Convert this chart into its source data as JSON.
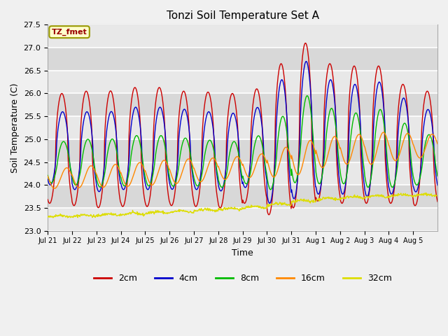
{
  "title": "Tonzi Soil Temperature Set A",
  "xlabel": "Time",
  "ylabel": "Soil Temperature (C)",
  "ylim": [
    23.0,
    27.5
  ],
  "xlim_days": 16,
  "tick_labels": [
    "Jul 21",
    "Jul 22",
    "Jul 23",
    "Jul 24",
    "Jul 25",
    "Jul 26",
    "Jul 27",
    "Jul 28",
    "Jul 29",
    "Jul 30",
    "Jul 31",
    "Aug 1",
    "Aug 2",
    "Aug 3",
    "Aug 4",
    "Aug 5"
  ],
  "legend_labels": [
    "2cm",
    "4cm",
    "8cm",
    "16cm",
    "32cm"
  ],
  "line_colors": [
    "#cc0000",
    "#0000cc",
    "#00bb00",
    "#ff8800",
    "#dddd00"
  ],
  "annotation_text": "TZ_fmet",
  "annotation_color": "#990000",
  "annotation_bg": "#ffffcc",
  "background_outer": "#f0f0f0",
  "grid_color": "#ffffff",
  "band_colors": [
    "#e8e8e8",
    "#d8d8d8"
  ],
  "n_pts": 960
}
